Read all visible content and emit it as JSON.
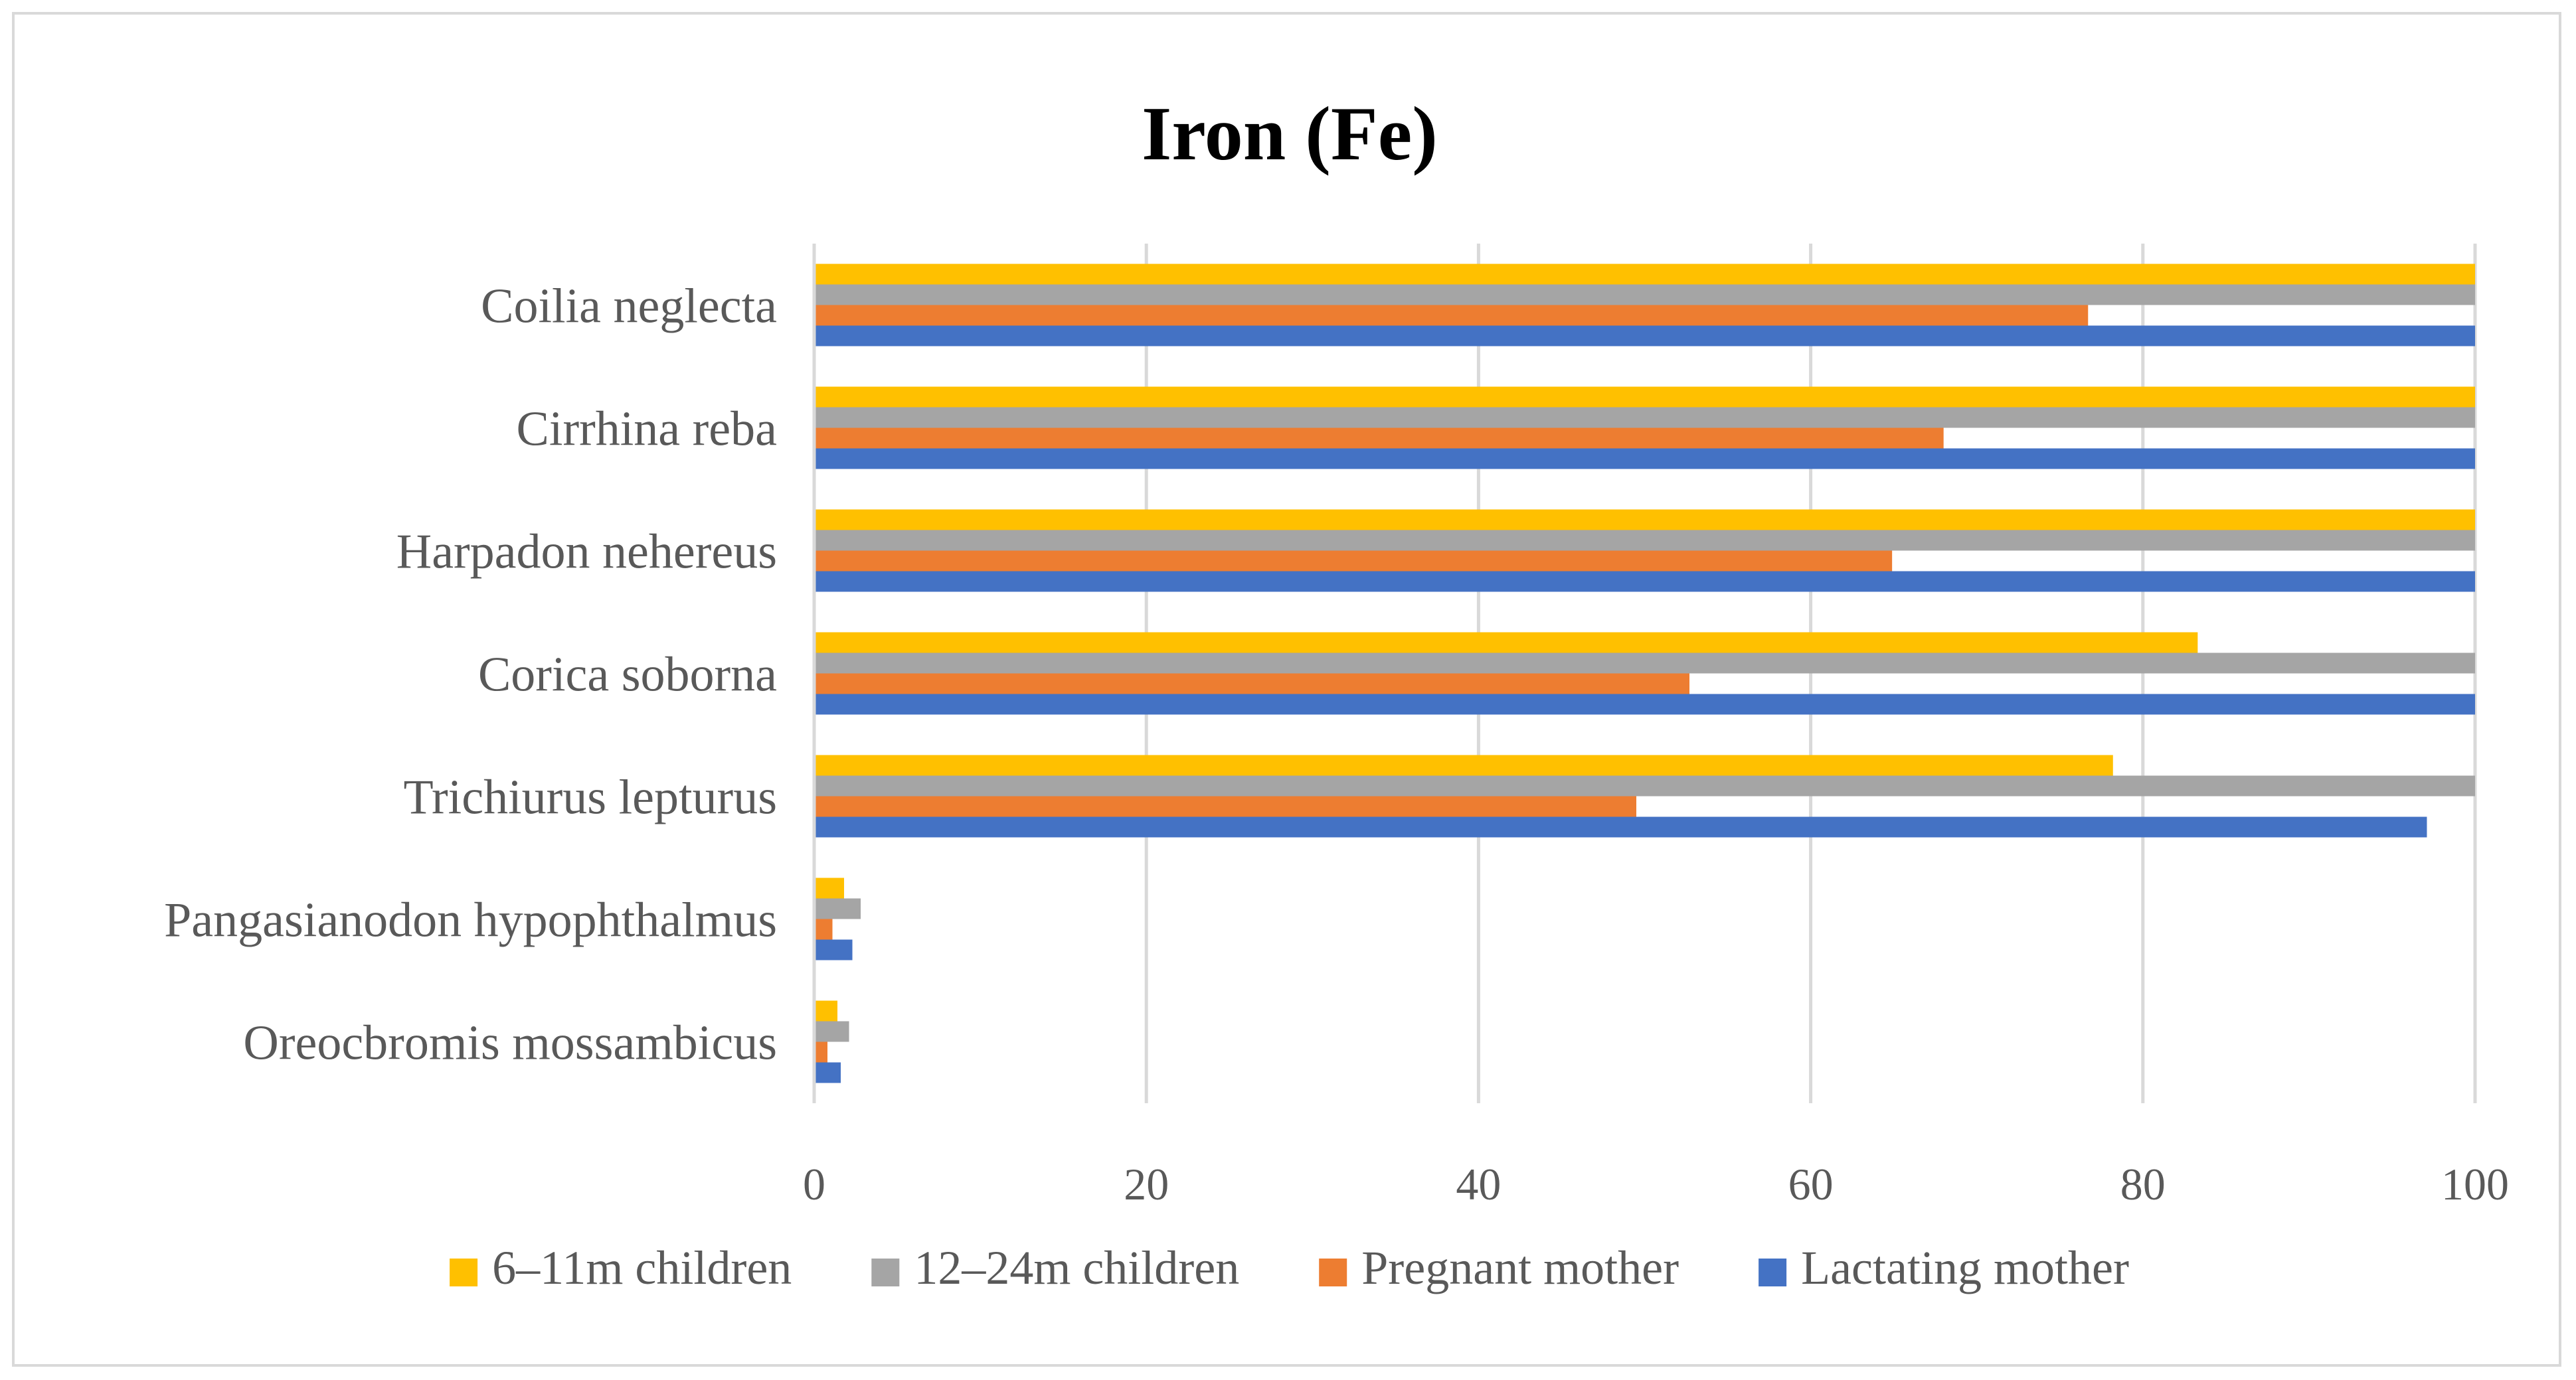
{
  "chart_data": {
    "type": "bar",
    "orientation": "horizontal",
    "title": "Iron (Fe)",
    "xlabel": "",
    "ylabel": "",
    "xlim": [
      0,
      100
    ],
    "x_ticks": [
      "0",
      "20",
      "40",
      "60",
      "80",
      "100"
    ],
    "grid": "vertical",
    "legend_position": "bottom",
    "categories": [
      "Coilia neglecta",
      "Cirrhina reba",
      "Harpadon nehereus",
      "Corica soborna",
      "Trichiurus lepturus",
      "Pangasianodon hypophthalmus",
      "Oreocbromis mossambicus"
    ],
    "series": [
      {
        "name": "6–11m children",
        "color": "#FFC000",
        "values": [
          100,
          100,
          100,
          83.3,
          78.2,
          1.8,
          1.4
        ]
      },
      {
        "name": "12–24m children",
        "color": "#A5A5A5",
        "values": [
          100,
          100,
          100,
          100,
          100,
          2.8,
          2.1
        ]
      },
      {
        "name": "Pregnant mother",
        "color": "#ED7D31",
        "values": [
          76.7,
          68.0,
          64.9,
          52.7,
          49.5,
          1.1,
          0.8
        ]
      },
      {
        "name": "Lactating mother",
        "color": "#4472C4",
        "values": [
          100,
          100,
          100,
          100,
          97.1,
          2.3,
          1.6
        ]
      }
    ]
  }
}
